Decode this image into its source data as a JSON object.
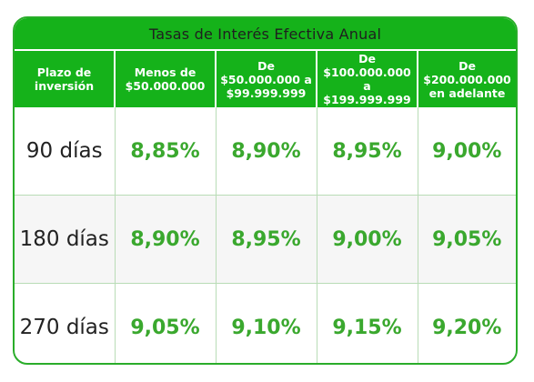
{
  "title": "Tasas de Interés Efectiva Anual",
  "columns": [
    {
      "line1": "Plazo de",
      "line2": "inversión"
    },
    {
      "line1": "Menos de",
      "line2": "$50.000.000"
    },
    {
      "line1": "De",
      "line2": "$50.000.000 a",
      "line3": "$99.999.999"
    },
    {
      "line1": "De",
      "line2": "$100.000.000",
      "line3": "a $199.999.999"
    },
    {
      "line1": "De",
      "line2": "$200.000.000",
      "line3": "en adelante"
    }
  ],
  "rows": [
    {
      "term": "90 días",
      "rates": [
        "8,85%",
        "8,90%",
        "8,95%",
        "9,00%"
      ]
    },
    {
      "term": "180 días",
      "rates": [
        "8,90%",
        "8,95%",
        "9,00%",
        "9,05%"
      ]
    },
    {
      "term": "270 días",
      "rates": [
        "9,05%",
        "9,10%",
        "9,15%",
        "9,20%"
      ]
    }
  ],
  "colors": {
    "header_green": "#15b21a",
    "rate_green": "#3aa82e",
    "border_green": "#2aad2a"
  }
}
